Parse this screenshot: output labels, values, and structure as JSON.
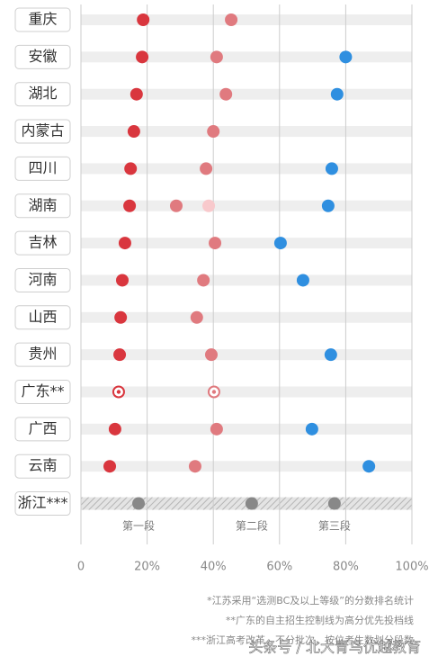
{
  "chart_data": {
    "type": "dot",
    "categories": [
      "重庆",
      "安徽",
      "湖北",
      "内蒙古",
      "四川",
      "湖南",
      "吉林",
      "河南",
      "山西",
      "贵州",
      "广东**",
      "广西",
      "云南",
      "浙江***"
    ],
    "series": [
      {
        "name": "第一段",
        "color": "#d9363e",
        "values": [
          18.8,
          18.5,
          16.8,
          16,
          15,
          14.7,
          13.3,
          12.5,
          12,
          11.7,
          11.4,
          10.3,
          8.7,
          17.4
        ]
      },
      {
        "name": "第二段",
        "color": "#e07a7f",
        "values": [
          45.4,
          41,
          43.8,
          40,
          37.8,
          28.8,
          40.5,
          37,
          35,
          39.4,
          40.2,
          41,
          34.5,
          51.6
        ]
      },
      {
        "name": "第三段",
        "color": "#2f8fe0",
        "values": [
          null,
          80,
          77.4,
          null,
          75.8,
          74.7,
          60.3,
          67.1,
          null,
          75.5,
          null,
          69.8,
          87,
          76.6
        ]
      },
      {
        "color": "#f8c9cc",
        "values": [
          null,
          null,
          null,
          null,
          null,
          38.6,
          null,
          null,
          null,
          null,
          null,
          null,
          null,
          null
        ]
      }
    ],
    "ring_rows": [
      10
    ],
    "hatched_rows": [
      13
    ],
    "hatched_color": "#888888",
    "xlim": [
      0,
      100
    ],
    "xticks": [
      0,
      {
        "value": 20,
        "label": "20%"
      },
      {
        "value": 40,
        "label": "40%"
      },
      {
        "value": 60,
        "label": "60%"
      },
      {
        "value": 80,
        "label": "80%"
      },
      {
        "value": 100,
        "label": "100%"
      }
    ],
    "grid": true,
    "notes": [
      "*江苏采用“选测BC及以上等级”的分数排名统计",
      "**广东的自主招生控制线为高分优先投档线",
      "***浙江高考改革，不分批次，按位考生数划分段数"
    ],
    "watermark": "头条号 / 北大青鸟优越教育"
  }
}
